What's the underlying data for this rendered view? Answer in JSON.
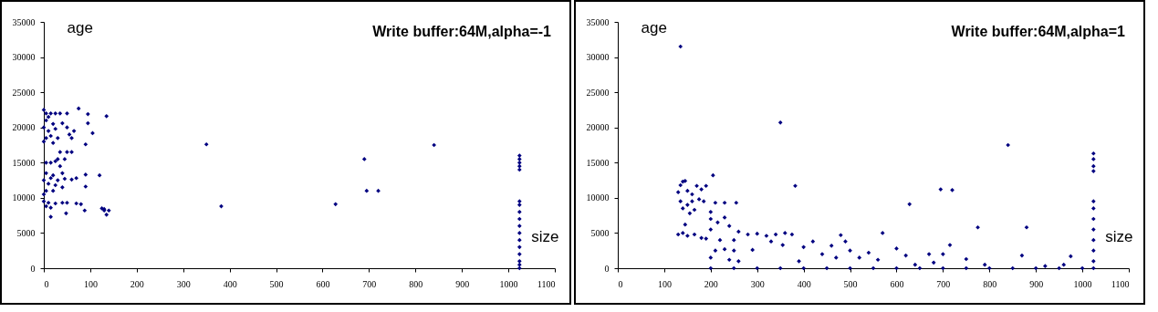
{
  "chart_data": [
    {
      "type": "scatter",
      "title": "Write buffer:64M,alpha=-1",
      "xlabel": "size",
      "ylabel": "age",
      "marker": "diamond",
      "color": "#000080",
      "xlim": [
        0,
        1100
      ],
      "xticks": [
        0,
        100,
        200,
        300,
        400,
        500,
        600,
        700,
        800,
        900,
        1000,
        1100
      ],
      "ylim": [
        0,
        35000
      ],
      "yticks": [
        0,
        5000,
        10000,
        15000,
        20000,
        25000,
        30000,
        35000
      ],
      "x": [
        0,
        5,
        10,
        15,
        25,
        35,
        50,
        75,
        95,
        95,
        135,
        5,
        20,
        40,
        0,
        10,
        25,
        50,
        65,
        105,
        5,
        15,
        30,
        55,
        60,
        0,
        20,
        90,
        35,
        50,
        60,
        30,
        5,
        15,
        25,
        45,
        35,
        5,
        20,
        40,
        90,
        120,
        0,
        15,
        30,
        45,
        60,
        70,
        10,
        25,
        40,
        90,
        5,
        20,
        0,
        0,
        10,
        25,
        40,
        50,
        70,
        80,
        5,
        15,
        125,
        130,
        140,
        135,
        130,
        88,
        15,
        48,
        350,
        382,
        628,
        690,
        695,
        720,
        840,
        1024,
        1024,
        1024,
        1024,
        1024,
        1024,
        1024,
        1024,
        1024,
        1024,
        1024,
        1024,
        1024,
        1024,
        1024,
        1024,
        1024
      ],
      "values": [
        22500,
        22000,
        21500,
        22000,
        22000,
        22000,
        22000,
        22700,
        21900,
        20600,
        21600,
        21000,
        20500,
        20600,
        20000,
        19500,
        19800,
        20000,
        19500,
        19200,
        18500,
        18800,
        18500,
        19000,
        18500,
        18000,
        17800,
        17600,
        16500,
        16500,
        16500,
        15500,
        15000,
        15000,
        15200,
        15500,
        14500,
        13500,
        13200,
        13500,
        13300,
        13200,
        12500,
        12800,
        12500,
        12700,
        12600,
        12800,
        12000,
        11800,
        11500,
        11600,
        11000,
        11000,
        10500,
        9500,
        9300,
        9200,
        9300,
        9300,
        9200,
        9100,
        8800,
        8600,
        8500,
        8200,
        8200,
        7600,
        8400,
        8200,
        7300,
        7800,
        17600,
        8800,
        9100,
        15500,
        11000,
        11000,
        17500,
        16000,
        15500,
        15000,
        14500,
        14000,
        9500,
        9000,
        8000,
        7000,
        6000,
        5000,
        4000,
        3000,
        2000,
        1000,
        500,
        0
      ]
    },
    {
      "type": "scatter",
      "title": "Write buffer:64M,alpha=1",
      "xlabel": "size",
      "ylabel": "age",
      "marker": "diamond",
      "color": "#000080",
      "xlim": [
        0,
        1100
      ],
      "xticks": [
        0,
        100,
        200,
        300,
        400,
        500,
        600,
        700,
        800,
        900,
        1000,
        1100
      ],
      "ylim": [
        0,
        35000
      ],
      "yticks": [
        0,
        5000,
        10000,
        15000,
        20000,
        25000,
        30000,
        35000
      ],
      "x": [
        135,
        350,
        382,
        695,
        720,
        628,
        840,
        775,
        880,
        870,
        975,
        570,
        480,
        130,
        135,
        140,
        145,
        150,
        160,
        170,
        180,
        190,
        135,
        150,
        160,
        175,
        185,
        140,
        165,
        155,
        130,
        140,
        150,
        165,
        180,
        190,
        145,
        200,
        205,
        210,
        230,
        255,
        200,
        215,
        230,
        240,
        200,
        220,
        250,
        210,
        230,
        250,
        200,
        240,
        260,
        260,
        280,
        300,
        320,
        340,
        360,
        375,
        330,
        290,
        355,
        200,
        250,
        300,
        350,
        400,
        450,
        500,
        550,
        600,
        650,
        700,
        750,
        800,
        850,
        900,
        950,
        1000,
        400,
        420,
        440,
        460,
        490,
        500,
        520,
        540,
        560,
        600,
        620,
        640,
        670,
        700,
        715,
        680,
        750,
        790,
        920,
        960,
        390,
        470,
        1024,
        1024,
        1024,
        1024,
        1024,
        1024,
        1024,
        1024,
        1024,
        1024,
        1024,
        1024
      ],
      "values": [
        31500,
        20700,
        11700,
        11200,
        11100,
        9100,
        17500,
        5800,
        5800,
        1800,
        1700,
        5000,
        4700,
        10800,
        11800,
        12300,
        12400,
        11000,
        10500,
        11700,
        11200,
        11700,
        9500,
        9000,
        9500,
        9800,
        9500,
        8500,
        8300,
        7800,
        4800,
        5000,
        4600,
        4800,
        4300,
        4200,
        6200,
        8000,
        13200,
        9300,
        9300,
        9300,
        7000,
        6500,
        7200,
        6000,
        5500,
        4000,
        4000,
        2500,
        2700,
        2500,
        1500,
        1200,
        1000,
        5200,
        4800,
        4900,
        4600,
        4800,
        5000,
        4800,
        3800,
        2600,
        3300,
        0,
        0,
        0,
        0,
        0,
        0,
        0,
        0,
        0,
        0,
        0,
        0,
        0,
        0,
        0,
        0,
        0,
        3000,
        3800,
        2000,
        3200,
        3800,
        2500,
        1500,
        2200,
        1200,
        2800,
        1800,
        500,
        2000,
        2000,
        3300,
        800,
        1300,
        500,
        300,
        500,
        1000,
        1500,
        16300,
        15500,
        14500,
        13800,
        9500,
        8500,
        7000,
        5500,
        4000,
        2500,
        1000,
        0
      ]
    }
  ]
}
